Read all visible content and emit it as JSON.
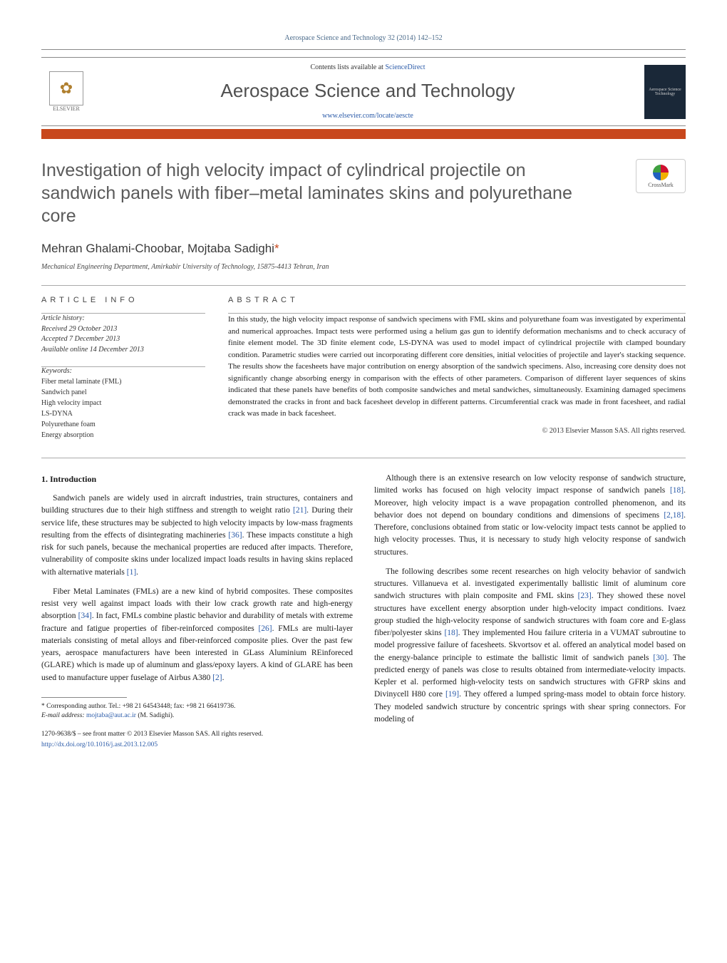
{
  "journal_ref": "Aerospace Science and Technology 32 (2014) 142–152",
  "header": {
    "contents_prefix": "Contents lists available at ",
    "contents_link": "ScienceDirect",
    "journal_title": "Aerospace Science and Technology",
    "homepage": "www.elsevier.com/locate/aescte",
    "publisher_label": "ELSEVIER",
    "cover_text": "Aerospace Science Technology",
    "accent_color": "#c8471c"
  },
  "crossmark_label": "CrossMark",
  "title": "Investigation of high velocity impact of cylindrical projectile on sandwich panels with fiber–metal laminates skins and polyurethane core",
  "authors_html": "Mehran Ghalami-Choobar, Mojtaba Sadighi",
  "corr_mark": "*",
  "affiliation": "Mechanical Engineering Department, Amirkabir University of Technology, 15875-4413 Tehran, Iran",
  "info": {
    "label": "ARTICLE INFO",
    "history_label": "Article history:",
    "received": "Received 29 October 2013",
    "accepted": "Accepted 7 December 2013",
    "online": "Available online 14 December 2013",
    "keywords_label": "Keywords:",
    "keywords": [
      "Fiber metal laminate (FML)",
      "Sandwich panel",
      "High velocity impact",
      "LS-DYNA",
      "Polyurethane foam",
      "Energy absorption"
    ]
  },
  "abstract": {
    "label": "ABSTRACT",
    "text": "In this study, the high velocity impact response of sandwich specimens with FML skins and polyurethane foam was investigated by experimental and numerical approaches. Impact tests were performed using a helium gas gun to identify deformation mechanisms and to check accuracy of finite element model. The 3D finite element code, LS-DYNA was used to model impact of cylindrical projectile with clamped boundary condition. Parametric studies were carried out incorporating different core densities, initial velocities of projectile and layer's stacking sequence. The results show the facesheets have major contribution on energy absorption of the sandwich specimens. Also, increasing core density does not significantly change absorbing energy in comparison with the effects of other parameters. Comparison of different layer sequences of skins indicated that these panels have benefits of both composite sandwiches and metal sandwiches, simultaneously. Examining damaged specimens demonstrated the cracks in front and back facesheet develop in different patterns. Circumferential crack was made in front facesheet, and radial crack was made in back facesheet.",
    "copyright": "© 2013 Elsevier Masson SAS. All rights reserved."
  },
  "body": {
    "intro_heading": "1. Introduction",
    "left_paras": [
      "Sandwich panels are widely used in aircraft industries, train structures, containers and building structures due to their high stiffness and strength to weight ratio [21]. During their service life, these structures may be subjected to high velocity impacts by low-mass fragments resulting from the effects of disintegrating machineries [36]. These impacts constitute a high risk for such panels, because the mechanical properties are reduced after impacts. Therefore, vulnerability of composite skins under localized impact loads results in having skins replaced with alternative materials [1].",
      "Fiber Metal Laminates (FMLs) are a new kind of hybrid composites. These composites resist very well against impact loads with their low crack growth rate and high-energy absorption [34]. In fact, FMLs combine plastic behavior and durability of metals with extreme fracture and fatigue properties of fiber-reinforced composites [26]. FMLs are multi-layer materials consisting of metal alloys and fiber-reinforced composite plies. Over the past few years, aerospace manufacturers have been interested in GLass Aluminium REinforeced (GLARE) which is made up of aluminum and glass/epoxy layers. A kind of GLARE has been used to manufacture upper fuselage of Airbus A380 [2]."
    ],
    "right_paras": [
      "Although there is an extensive research on low velocity response of sandwich structure, limited works has focused on high velocity impact response of sandwich panels [18]. Moreover, high velocity impact is a wave propagation controlled phenomenon, and its behavior does not depend on boundary conditions and dimensions of specimens [2,18]. Therefore, conclusions obtained from static or low-velocity impact tests cannot be applied to high velocity processes. Thus, it is necessary to study high velocity response of sandwich structures.",
      "The following describes some recent researches on high velocity behavior of sandwich structures. Villanueva et al. investigated experimentally ballistic limit of aluminum core sandwich structures with plain composite and FML skins [23]. They showed these novel structures have excellent energy absorption under high-velocity impact conditions. Ivaez group studied the high-velocity response of sandwich structures with foam core and E-glass fiber/polyester skins [18]. They implemented Hou failure criteria in a VUMAT subroutine to model progressive failure of facesheets. Skvortsov et al. offered an analytical model based on the energy-balance principle to estimate the ballistic limit of sandwich panels [30]. The predicted energy of panels was close to results obtained from intermediate-velocity impacts. Kepler et al. performed high-velocity tests on sandwich structures with GFRP skins and Divinycell H80 core [19]. They offered a lumped spring-mass model to obtain force history. They modeled sandwich structure by concentric springs with shear spring connectors. For modeling of"
    ]
  },
  "footnote": {
    "mark": "*",
    "text": "Corresponding author. Tel.: +98 21 64543448; fax: +98 21 66419736.",
    "email_label": "E-mail address:",
    "email": "mojtaba@aut.ac.ir",
    "email_attrib": "(M. Sadighi)."
  },
  "footer": {
    "issn": "1270-9638/$ – see front matter © 2013 Elsevier Masson SAS. All rights reserved.",
    "doi": "http://dx.doi.org/10.1016/j.ast.2013.12.005"
  },
  "colors": {
    "link": "#2a5aa8",
    "accent": "#c8471c",
    "title_gray": "#5a5a5a",
    "rule": "#aaaaaa"
  },
  "typography": {
    "body_fontsize_pt": 9,
    "title_fontsize_pt": 19,
    "journal_title_fontsize_pt": 20
  }
}
